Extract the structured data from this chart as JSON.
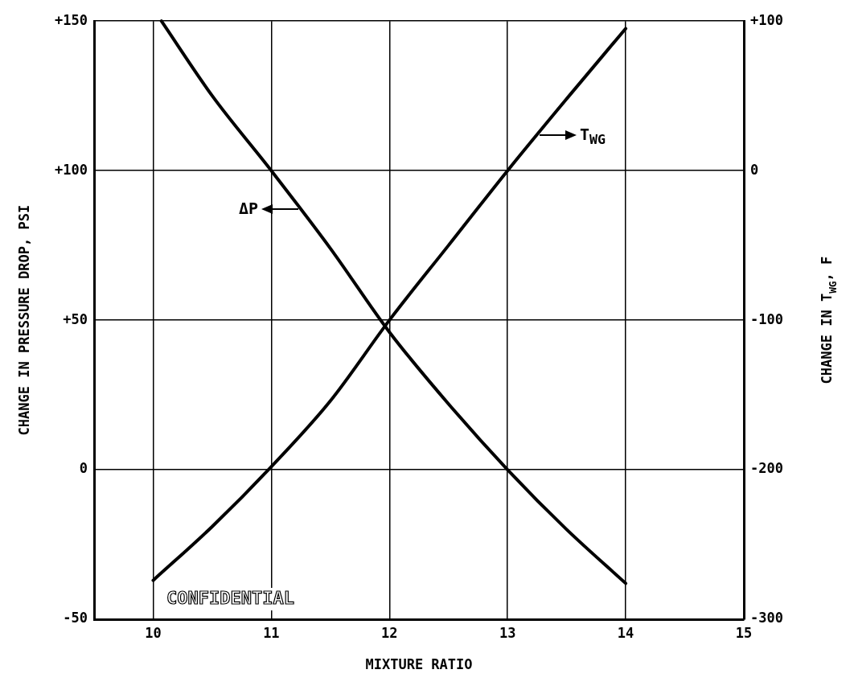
{
  "chart_data": {
    "type": "line",
    "xlabel": "MIXTURE RATIO",
    "ylabel": "CHANGE IN PRESSURE DROP, PSI",
    "y2label": "CHANGE IN T$_{WG}$, F",
    "xlim": [
      9.5,
      15
    ],
    "xticks": [
      10,
      11,
      12,
      13,
      14,
      15
    ],
    "ylim": [
      -50,
      150
    ],
    "yticks": [
      {
        "value": 150,
        "label": "+150"
      },
      {
        "value": 100,
        "label": "+100"
      },
      {
        "value": 50,
        "label": "+50"
      },
      0,
      -50
    ],
    "y2lim": [
      -300,
      100
    ],
    "y2ticks": [
      {
        "value": 100,
        "label": "+100"
      },
      0,
      -100,
      -200,
      -300
    ],
    "grid": true,
    "marker": "none",
    "line_style": "solid",
    "series": [
      {
        "name": "ΔP",
        "color": "#000000",
        "x": [
          10.07,
          10.5,
          11,
          11.5,
          12,
          12.5,
          13,
          13.5,
          14
        ],
        "values": [
          150,
          125,
          100,
          74,
          46,
          22,
          0,
          -20,
          -38
        ]
      },
      {
        "name": "T$_{WG}$",
        "color": "#000000",
        "axis": "y2",
        "x": [
          10,
          10.5,
          11,
          11.5,
          12,
          12.5,
          13,
          13.5,
          14
        ],
        "values": [
          -274,
          -238,
          -198,
          -154,
          -100,
          -50,
          0,
          48,
          95
        ]
      }
    ],
    "annotations": [
      "CONFIDENTIAL"
    ]
  }
}
